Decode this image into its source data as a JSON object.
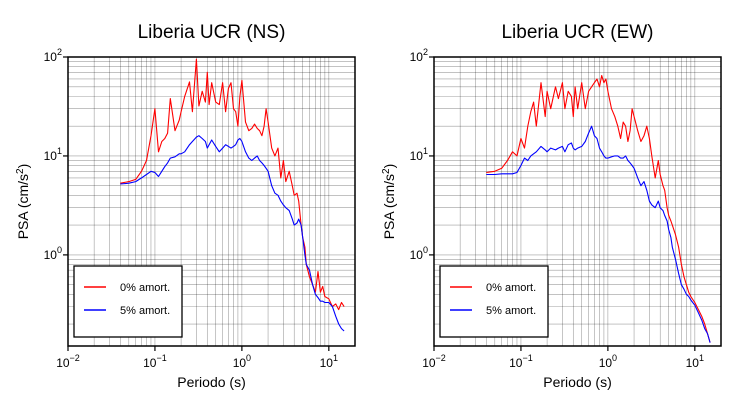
{
  "chart_data": [
    {
      "type": "line",
      "title": "Liberia UCR (NS)",
      "xlabel": "Periodo (s)",
      "ylabel": "PSA (cm/s²)",
      "xscale": "log",
      "yscale": "log",
      "xlim": [
        0.01,
        20
      ],
      "ylim": [
        0.12,
        100
      ],
      "xticks": [
        {
          "v": 0.01,
          "b": "10",
          "e": "−2"
        },
        {
          "v": 0.1,
          "b": "10",
          "e": "−1"
        },
        {
          "v": 1,
          "b": "10",
          "e": "0"
        },
        {
          "v": 10,
          "b": "10",
          "e": "1"
        }
      ],
      "yticks": [
        {
          "v": 1,
          "b": "10",
          "e": "0"
        },
        {
          "v": 10,
          "b": "10",
          "e": "1"
        },
        {
          "v": 100,
          "b": "10",
          "e": "2"
        }
      ],
      "grid": true,
      "legend_position": "bottom-left",
      "series": [
        {
          "name": "0% amort.",
          "color": "#ff0000",
          "x": [
            0.04,
            0.05,
            0.06,
            0.07,
            0.08,
            0.09,
            0.1,
            0.11,
            0.12,
            0.13,
            0.14,
            0.15,
            0.17,
            0.19,
            0.2,
            0.22,
            0.25,
            0.27,
            0.3,
            0.32,
            0.35,
            0.38,
            0.4,
            0.42,
            0.45,
            0.5,
            0.55,
            0.6,
            0.65,
            0.7,
            0.75,
            0.8,
            0.85,
            0.9,
            0.95,
            1.0,
            1.1,
            1.2,
            1.3,
            1.4,
            1.5,
            1.6,
            1.7,
            1.8,
            1.9,
            2.0,
            2.2,
            2.4,
            2.6,
            2.8,
            3.0,
            3.2,
            3.5,
            3.8,
            4.0,
            4.3,
            4.5,
            4.8,
            5.0,
            5.3,
            5.5,
            6.0,
            6.5,
            7.0,
            7.5,
            8.0,
            8.5,
            9.0,
            10.0,
            11.0,
            12.0,
            13.0,
            14.0,
            15.0
          ],
          "y": [
            5.3,
            5.5,
            5.8,
            7,
            9,
            16,
            30,
            11,
            14,
            15,
            17,
            38,
            18,
            23,
            28,
            40,
            56,
            28,
            95,
            32,
            45,
            35,
            70,
            33,
            55,
            35,
            33,
            55,
            28,
            48,
            55,
            30,
            28,
            20,
            40,
            58,
            22,
            18,
            19,
            21,
            19,
            18,
            16,
            20,
            30,
            22,
            12,
            10,
            12,
            6,
            9,
            5.5,
            7,
            5,
            4,
            4.2,
            3.5,
            2,
            1.5,
            1.2,
            0.8,
            0.6,
            0.5,
            0.42,
            0.68,
            0.42,
            0.48,
            0.38,
            0.36,
            0.3,
            0.32,
            0.28,
            0.33,
            0.3
          ]
        },
        {
          "name": "5% amort.",
          "color": "#0000ff",
          "x": [
            0.04,
            0.05,
            0.06,
            0.07,
            0.08,
            0.09,
            0.1,
            0.11,
            0.12,
            0.13,
            0.14,
            0.15,
            0.17,
            0.19,
            0.2,
            0.22,
            0.25,
            0.27,
            0.3,
            0.32,
            0.35,
            0.38,
            0.4,
            0.42,
            0.45,
            0.5,
            0.55,
            0.6,
            0.65,
            0.7,
            0.75,
            0.8,
            0.85,
            0.9,
            0.95,
            1.0,
            1.1,
            1.2,
            1.3,
            1.4,
            1.5,
            1.6,
            1.7,
            1.8,
            1.9,
            2.0,
            2.2,
            2.4,
            2.6,
            2.8,
            3.0,
            3.2,
            3.5,
            3.8,
            4.0,
            4.3,
            4.5,
            4.8,
            5.0,
            5.3,
            5.5,
            6.0,
            6.5,
            7.0,
            7.5,
            8.0,
            8.5,
            9.0,
            10.0,
            11.0,
            12.0,
            13.0,
            14.0,
            15.0
          ],
          "y": [
            5.2,
            5.3,
            5.5,
            6.0,
            6.5,
            7.0,
            6.8,
            6.2,
            7.0,
            7.8,
            8.5,
            9.5,
            9.8,
            10.5,
            10.5,
            11.0,
            13.0,
            14.0,
            15.5,
            16.0,
            15.0,
            14.0,
            12.0,
            13.0,
            14.5,
            12.5,
            11.0,
            12.0,
            13.0,
            12.5,
            12.0,
            12.5,
            13.0,
            14.5,
            15.0,
            14.0,
            11.0,
            9.5,
            9.0,
            9.5,
            10.0,
            9.0,
            8.5,
            8.0,
            7.5,
            7.0,
            5.0,
            4.2,
            4.0,
            3.5,
            3.2,
            3.0,
            2.8,
            2.3,
            2.0,
            2.1,
            2.3,
            2.0,
            1.5,
            1.0,
            0.8,
            0.7,
            0.5,
            0.4,
            0.37,
            0.34,
            0.34,
            0.33,
            0.33,
            0.3,
            0.24,
            0.2,
            0.18,
            0.17
          ]
        }
      ]
    },
    {
      "type": "line",
      "title": "Liberia UCR (EW)",
      "xlabel": "Periodo (s)",
      "ylabel": "PSA (cm/s²)",
      "xscale": "log",
      "yscale": "log",
      "xlim": [
        0.01,
        20
      ],
      "ylim": [
        0.12,
        100
      ],
      "xticks": [
        {
          "v": 0.01,
          "b": "10",
          "e": "−2"
        },
        {
          "v": 0.1,
          "b": "10",
          "e": "−1"
        },
        {
          "v": 1,
          "b": "10",
          "e": "0"
        },
        {
          "v": 10,
          "b": "10",
          "e": "1"
        }
      ],
      "yticks": [
        {
          "v": 1,
          "b": "10",
          "e": "0"
        },
        {
          "v": 10,
          "b": "10",
          "e": "1"
        },
        {
          "v": 100,
          "b": "10",
          "e": "2"
        }
      ],
      "grid": true,
      "legend_position": "bottom-left",
      "series": [
        {
          "name": "0% amort.",
          "color": "#ff0000",
          "x": [
            0.04,
            0.05,
            0.06,
            0.07,
            0.08,
            0.09,
            0.1,
            0.11,
            0.12,
            0.13,
            0.14,
            0.15,
            0.17,
            0.19,
            0.2,
            0.22,
            0.25,
            0.27,
            0.3,
            0.32,
            0.35,
            0.38,
            0.4,
            0.42,
            0.45,
            0.5,
            0.55,
            0.6,
            0.65,
            0.7,
            0.75,
            0.8,
            0.85,
            0.9,
            0.95,
            1.0,
            1.1,
            1.2,
            1.3,
            1.4,
            1.5,
            1.6,
            1.7,
            1.8,
            1.9,
            2.0,
            2.2,
            2.4,
            2.6,
            2.8,
            3.0,
            3.2,
            3.5,
            3.8,
            4.0,
            4.3,
            4.5,
            4.8,
            5.0,
            5.3,
            5.5,
            6.0,
            6.5,
            7.0,
            7.5,
            8.0,
            8.5,
            9.0,
            10.0,
            11.0,
            12.0,
            13.0,
            14.0,
            15.0
          ],
          "y": [
            6.8,
            7,
            7.5,
            9,
            11,
            10,
            15,
            12,
            20,
            28,
            35,
            20,
            55,
            25,
            45,
            30,
            50,
            38,
            55,
            30,
            45,
            40,
            25,
            50,
            30,
            55,
            30,
            45,
            50,
            55,
            60,
            50,
            65,
            55,
            60,
            45,
            30,
            25,
            20,
            15,
            22,
            20,
            14,
            18,
            30,
            25,
            18,
            14,
            16,
            20,
            15,
            10,
            6,
            9,
            6.5,
            5,
            4.5,
            3,
            2.5,
            2.2,
            2,
            1.6,
            1.2,
            0.8,
            0.6,
            0.5,
            0.42,
            0.38,
            0.33,
            0.28,
            0.24,
            0.2,
            0.16,
            0.13
          ]
        },
        {
          "name": "5% amort.",
          "color": "#0000ff",
          "x": [
            0.04,
            0.05,
            0.06,
            0.07,
            0.08,
            0.09,
            0.1,
            0.11,
            0.12,
            0.13,
            0.14,
            0.15,
            0.17,
            0.19,
            0.2,
            0.22,
            0.25,
            0.27,
            0.3,
            0.32,
            0.35,
            0.38,
            0.4,
            0.42,
            0.45,
            0.5,
            0.55,
            0.6,
            0.65,
            0.7,
            0.75,
            0.8,
            0.85,
            0.9,
            0.95,
            1.0,
            1.1,
            1.2,
            1.3,
            1.4,
            1.5,
            1.6,
            1.7,
            1.8,
            1.9,
            2.0,
            2.2,
            2.4,
            2.6,
            2.8,
            3.0,
            3.2,
            3.5,
            3.8,
            4.0,
            4.3,
            4.5,
            4.8,
            5.0,
            5.3,
            5.5,
            6.0,
            6.5,
            7.0,
            7.5,
            8.0,
            8.5,
            9.0,
            10.0,
            11.0,
            12.0,
            13.0,
            14.0,
            15.0
          ],
          "y": [
            6.5,
            6.5,
            6.6,
            6.6,
            6.6,
            6.8,
            8.0,
            9.5,
            9.0,
            10.0,
            10.5,
            11.0,
            12.5,
            11.5,
            11.0,
            12.0,
            11.5,
            12.0,
            12.5,
            11.0,
            13.0,
            13.5,
            12.0,
            11.5,
            12.0,
            12.5,
            14.0,
            17.0,
            20.0,
            16.0,
            15.0,
            12.0,
            11.0,
            10.0,
            9.5,
            9.5,
            9.8,
            10.0,
            10.0,
            9.5,
            9.5,
            10.0,
            9.0,
            8.5,
            8.0,
            7.5,
            6.0,
            5.0,
            5.5,
            4.5,
            3.5,
            3.2,
            3.0,
            3.5,
            3.0,
            2.8,
            2.5,
            2.2,
            1.8,
            1.5,
            1.2,
            0.9,
            0.65,
            0.5,
            0.45,
            0.4,
            0.38,
            0.35,
            0.31,
            0.26,
            0.22,
            0.18,
            0.16,
            0.13
          ]
        }
      ]
    }
  ]
}
